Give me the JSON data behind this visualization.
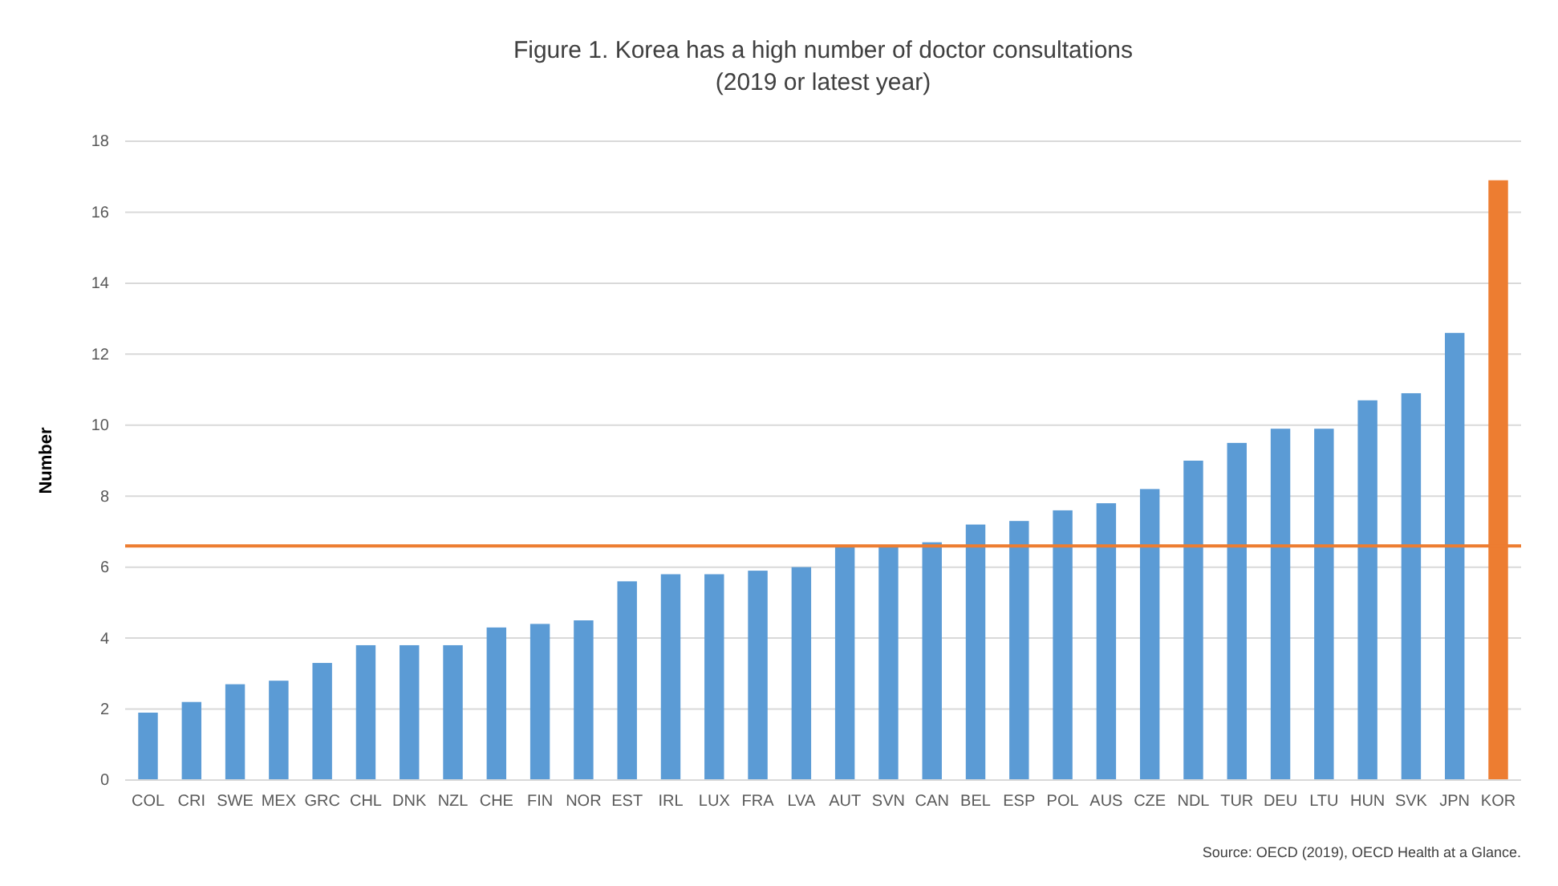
{
  "chart_data": {
    "type": "bar",
    "title": "Figure 1. Korea has a high number of doctor consultations",
    "subtitle": "(2019 or latest year)",
    "ylabel": "Number",
    "categories": [
      "COL",
      "CRI",
      "SWE",
      "MEX",
      "GRC",
      "CHL",
      "DNK",
      "NZL",
      "CHE",
      "FIN",
      "NOR",
      "EST",
      "IRL",
      "LUX",
      "FRA",
      "LVA",
      "AUT",
      "SVN",
      "CAN",
      "BEL",
      "ESP",
      "POL",
      "AUS",
      "CZE",
      "NDL",
      "TUR",
      "DEU",
      "LTU",
      "HUN",
      "SVK",
      "JPN",
      "KOR"
    ],
    "values": [
      1.9,
      2.2,
      2.7,
      2.8,
      3.3,
      3.8,
      3.8,
      3.8,
      4.3,
      4.4,
      4.5,
      5.6,
      5.8,
      5.8,
      5.9,
      6.0,
      6.6,
      6.6,
      6.7,
      7.2,
      7.3,
      7.6,
      7.8,
      8.2,
      9.0,
      9.5,
      9.9,
      9.9,
      10.7,
      10.9,
      12.6,
      16.9
    ],
    "colors": [
      "#5b9bd5",
      "#5b9bd5",
      "#5b9bd5",
      "#5b9bd5",
      "#5b9bd5",
      "#5b9bd5",
      "#5b9bd5",
      "#5b9bd5",
      "#5b9bd5",
      "#5b9bd5",
      "#5b9bd5",
      "#5b9bd5",
      "#5b9bd5",
      "#5b9bd5",
      "#5b9bd5",
      "#5b9bd5",
      "#5b9bd5",
      "#5b9bd5",
      "#5b9bd5",
      "#5b9bd5",
      "#5b9bd5",
      "#5b9bd5",
      "#5b9bd5",
      "#5b9bd5",
      "#5b9bd5",
      "#5b9bd5",
      "#5b9bd5",
      "#5b9bd5",
      "#5b9bd5",
      "#5b9bd5",
      "#5b9bd5",
      "#ed7d31"
    ],
    "ylim": [
      0,
      18
    ],
    "yticks": [
      0,
      2,
      4,
      6,
      8,
      10,
      12,
      14,
      16,
      18
    ],
    "grid": "y",
    "ref_lines": [
      {
        "axis": "y",
        "value": 6.6,
        "color": "#ed7d31"
      }
    ],
    "annotations": [
      "Source: OECD (2019), OECD Health at a Glance."
    ]
  }
}
